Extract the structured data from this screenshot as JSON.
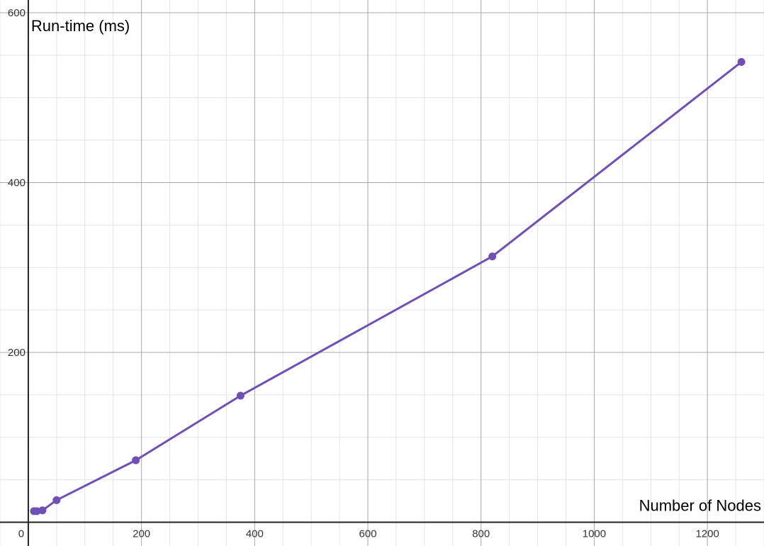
{
  "chart_data": {
    "type": "line",
    "title": "",
    "xlabel": "Number of Nodes",
    "ylabel": "Run-time (ms)",
    "xlim": [
      -50,
      1300
    ],
    "ylim": [
      -28,
      615
    ],
    "x_ticks": [
      0,
      200,
      400,
      600,
      800,
      1000,
      1200
    ],
    "x_tick_labels": [
      "0",
      "200",
      "400",
      "600",
      "800",
      "1000",
      "1200"
    ],
    "y_ticks": [
      200,
      400,
      600
    ],
    "y_tick_labels": [
      "200",
      "400",
      "600"
    ],
    "grid": true,
    "major_grid_step_x": 200,
    "major_grid_step_y": 200,
    "minor_grid_step_x": 50,
    "minor_grid_step_y": 50,
    "series": [
      {
        "color": "#6f4fb8",
        "marker": "circle",
        "points": [
          {
            "x": 10,
            "y": 13
          },
          {
            "x": 15,
            "y": 13
          },
          {
            "x": 25,
            "y": 14
          },
          {
            "x": 50,
            "y": 26
          },
          {
            "x": 190,
            "y": 73
          },
          {
            "x": 375,
            "y": 149
          },
          {
            "x": 820,
            "y": 313
          },
          {
            "x": 1260,
            "y": 542
          }
        ]
      }
    ]
  }
}
